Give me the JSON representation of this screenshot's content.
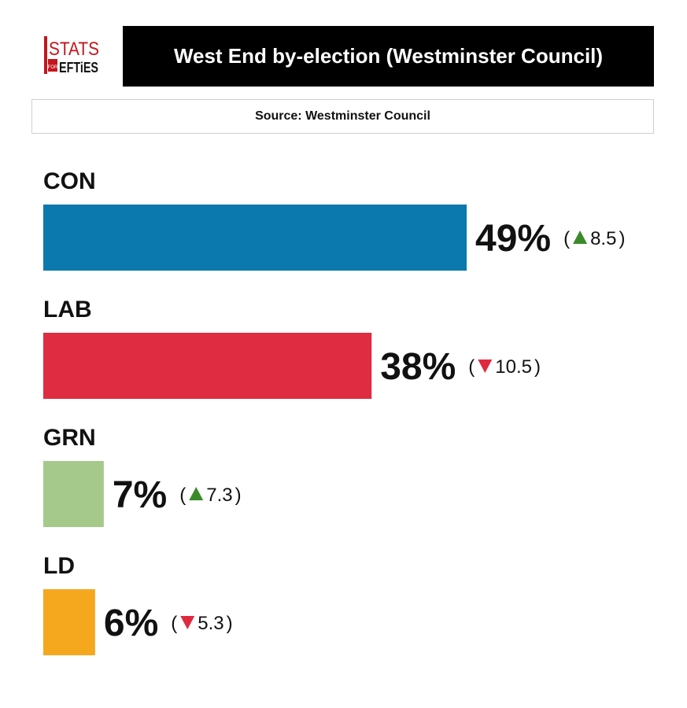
{
  "branding": {
    "logo_text_top": "STATS",
    "logo_text_small": "FOR",
    "logo_text_bottom": "LEFTIES"
  },
  "header": {
    "title": "West End by-election (Westminster Council)"
  },
  "source": {
    "text": "Source: Westminster Council"
  },
  "colors": {
    "up": "#3a8a2a",
    "down": "#e0283e"
  },
  "chart_data": {
    "type": "bar",
    "orientation": "horizontal",
    "categories": [
      "CON",
      "LAB",
      "GRN",
      "LD"
    ],
    "values": [
      49,
      38,
      7,
      6
    ],
    "value_labels": [
      "49%",
      "38%",
      "7%",
      "6%"
    ],
    "changes": [
      {
        "direction": "up",
        "value": "8.5"
      },
      {
        "direction": "down",
        "value": "10.5"
      },
      {
        "direction": "up",
        "value": "7.3"
      },
      {
        "direction": "down",
        "value": "5.3"
      }
    ],
    "colors": [
      "#0b79ad",
      "#df2c40",
      "#a5c98b",
      "#f5a71e"
    ],
    "title": "West End by-election (Westminster Council)",
    "xlim": [
      0,
      49
    ]
  }
}
